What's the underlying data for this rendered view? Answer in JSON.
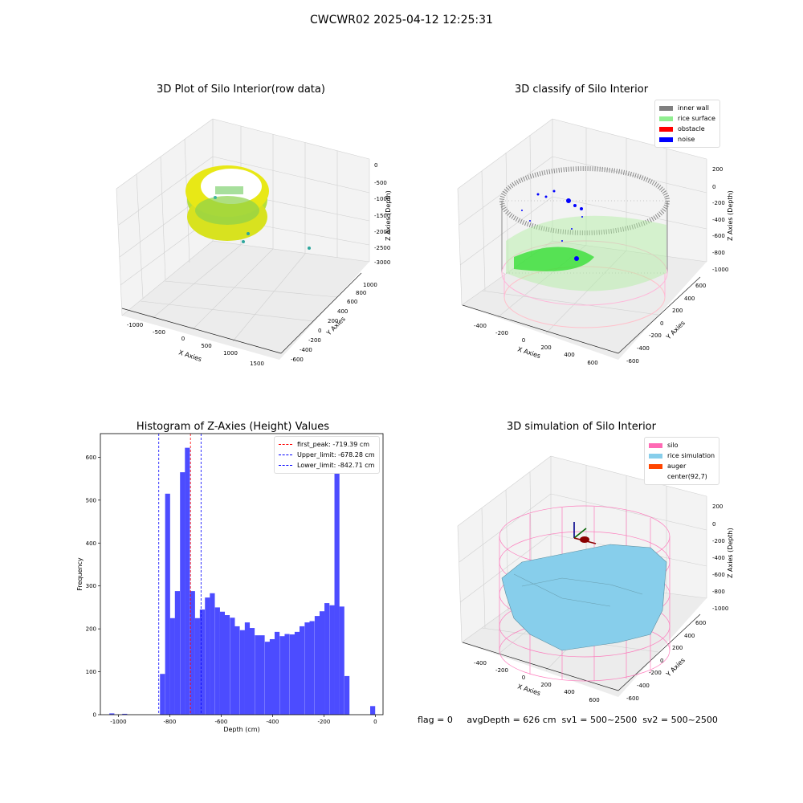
{
  "suptitle": "CWCWR02 2025-04-12 12:25:31",
  "panels": {
    "raw": {
      "title": "3D Plot of Silo Interior(row data)",
      "xlabel": "X Axies",
      "ylabel": "Y Axies",
      "zlabel": "Z Axies (Depth)",
      "xticks": [
        "-1000",
        "-500",
        "0",
        "500",
        "1000",
        "1500"
      ],
      "yticks": [
        "-600",
        "-400",
        "-200",
        "0",
        "200",
        "400",
        "600",
        "800",
        "1000"
      ],
      "zticks": [
        "0",
        "-500",
        "-1000",
        "-1500",
        "-2000",
        "-2500",
        "-3000"
      ]
    },
    "classify": {
      "title": "3D classify of Silo Interior",
      "xlabel": "X Axies",
      "ylabel": "Y Axies",
      "zlabel": "Z Axies (Depth)",
      "xticks": [
        "-400",
        "-200",
        "0",
        "200",
        "400",
        "600"
      ],
      "yticks": [
        "-600",
        "-400",
        "-200",
        "0",
        "200",
        "400",
        "600"
      ],
      "zticks": [
        "200",
        "0",
        "-200",
        "-400",
        "-600",
        "-800",
        "-1000"
      ],
      "legend": [
        {
          "label": "inner wall",
          "color": "#808080"
        },
        {
          "label": "rice surface",
          "color": "#90ee90"
        },
        {
          "label": "obstacle",
          "color": "#ff0000"
        },
        {
          "label": "noise",
          "color": "#0000ff"
        }
      ]
    },
    "simulation": {
      "title": "3D simulation of Silo Interior",
      "xlabel": "X Axies",
      "ylabel": "Y Axies",
      "zlabel": "Z Axies (Depth)",
      "xticks": [
        "-400",
        "-200",
        "0",
        "200",
        "400",
        "600"
      ],
      "yticks": [
        "-600",
        "-400",
        "-200",
        "0",
        "200",
        "400",
        "600"
      ],
      "zticks": [
        "200",
        "0",
        "-200",
        "-400",
        "-600",
        "-800",
        "-1000"
      ],
      "legend": [
        {
          "label": "silo",
          "color": "#ff69b4"
        },
        {
          "label": "rice simulation",
          "color": "#87ceeb"
        },
        {
          "label": "auger",
          "color": "#ff4500"
        },
        {
          "label": "center(92,7)",
          "color": ""
        }
      ]
    }
  },
  "footer": "flag = 0     avgDepth = 626 cm  sv1 = 500~2500  sv2 = 500~2500",
  "chart_data": [
    {
      "type": "bar",
      "title": "Histogram of Z-Axies (Height) Values",
      "xlabel": "Depth (cm)",
      "ylabel": "Frequency",
      "xlim": [
        -1070,
        30
      ],
      "ylim": [
        0,
        655
      ],
      "xticks": [
        -1000,
        -800,
        -600,
        -400,
        -200,
        0
      ],
      "yticks": [
        0,
        100,
        200,
        300,
        400,
        500,
        600
      ],
      "bin_width": 19.4,
      "bins": [
        {
          "x0": -1035,
          "count": 3
        },
        {
          "x0": -985,
          "count": 2
        },
        {
          "x0": -838,
          "count": 95
        },
        {
          "x0": -818,
          "count": 515
        },
        {
          "x0": -799,
          "count": 225
        },
        {
          "x0": -780,
          "count": 288
        },
        {
          "x0": -760,
          "count": 565
        },
        {
          "x0": -741,
          "count": 622
        },
        {
          "x0": -721,
          "count": 288
        },
        {
          "x0": -702,
          "count": 225
        },
        {
          "x0": -683,
          "count": 245
        },
        {
          "x0": -663,
          "count": 273
        },
        {
          "x0": -644,
          "count": 283
        },
        {
          "x0": -624,
          "count": 250
        },
        {
          "x0": -605,
          "count": 240
        },
        {
          "x0": -586,
          "count": 232
        },
        {
          "x0": -566,
          "count": 226
        },
        {
          "x0": -547,
          "count": 206
        },
        {
          "x0": -527,
          "count": 197
        },
        {
          "x0": -508,
          "count": 215
        },
        {
          "x0": -489,
          "count": 202
        },
        {
          "x0": -469,
          "count": 185
        },
        {
          "x0": -450,
          "count": 185
        },
        {
          "x0": -430,
          "count": 170
        },
        {
          "x0": -411,
          "count": 176
        },
        {
          "x0": -392,
          "count": 193
        },
        {
          "x0": -372,
          "count": 183
        },
        {
          "x0": -353,
          "count": 188
        },
        {
          "x0": -333,
          "count": 187
        },
        {
          "x0": -314,
          "count": 193
        },
        {
          "x0": -295,
          "count": 206
        },
        {
          "x0": -275,
          "count": 215
        },
        {
          "x0": -256,
          "count": 218
        },
        {
          "x0": -236,
          "count": 230
        },
        {
          "x0": -217,
          "count": 241
        },
        {
          "x0": -198,
          "count": 260
        },
        {
          "x0": -178,
          "count": 255
        },
        {
          "x0": -159,
          "count": 580
        },
        {
          "x0": -140,
          "count": 252
        },
        {
          "x0": -120,
          "count": 90
        },
        {
          "x0": -20,
          "count": 20
        }
      ],
      "vlines": [
        {
          "label": "first_peak: -719.39 cm",
          "value": -719.39,
          "color": "#ff0000"
        },
        {
          "label": "Upper_limit: -678.28 cm",
          "value": -678.28,
          "color": "#0000ff"
        },
        {
          "label": "Lower_limit: -842.71 cm",
          "value": -842.71,
          "color": "#0000ff"
        }
      ],
      "bar_color": "#4c4cff",
      "legend_position": "top-right"
    }
  ]
}
